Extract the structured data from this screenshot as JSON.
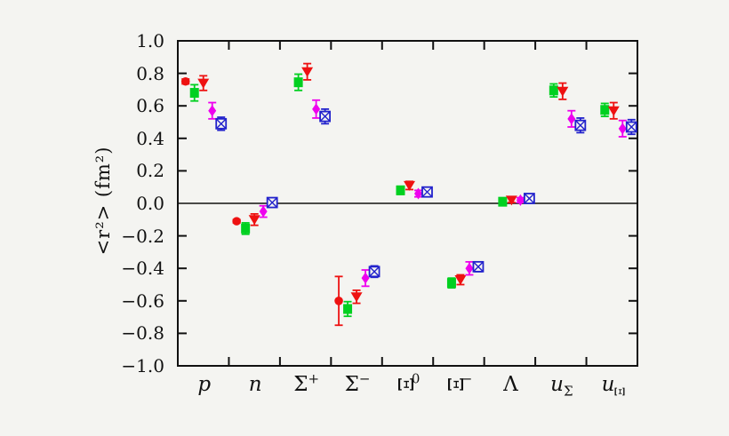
{
  "figure": {
    "kind": "scientific-plot",
    "background_color": "#f4f4f1",
    "axis_color": "#111111"
  },
  "chart_data": {
    "type": "scatter",
    "title": "",
    "xlabel": "",
    "ylabel": "<r²> (fm²)",
    "ylim": [
      -1.0,
      1.0
    ],
    "grid": false,
    "legend": "none",
    "background": "#f4f4f1",
    "yticks": [
      {
        "v": 1.0,
        "label": "1.0"
      },
      {
        "v": 0.8,
        "label": "0.8"
      },
      {
        "v": 0.6,
        "label": "0.6"
      },
      {
        "v": 0.4,
        "label": "0.4"
      },
      {
        "v": 0.2,
        "label": "0.2"
      },
      {
        "v": 0.0,
        "label": "0.0"
      },
      {
        "v": -0.2,
        "label": "−0.2"
      },
      {
        "v": -0.4,
        "label": "−0.4"
      },
      {
        "v": -0.6,
        "label": "−0.6"
      },
      {
        "v": -0.8,
        "label": "−0.8"
      },
      {
        "v": -1.0,
        "label": "−1.0"
      }
    ],
    "series": [
      {
        "name": "experiment-circle",
        "marker": "circle",
        "color": "#ee1111"
      },
      {
        "name": "green-square",
        "marker": "square",
        "color": "#00d020"
      },
      {
        "name": "red-triangle-down",
        "marker": "triangle-down",
        "color": "#ee1111"
      },
      {
        "name": "magenta-diamond",
        "marker": "diamond",
        "color": "#ee00ee"
      },
      {
        "name": "blue-crossed-square",
        "marker": "square-x",
        "color": "#2222cc"
      }
    ],
    "categories": [
      {
        "id": "p",
        "base": "p",
        "italic": true
      },
      {
        "id": "n",
        "base": "n",
        "italic": true
      },
      {
        "id": "sigma+",
        "base": "Σ",
        "sup": "+"
      },
      {
        "id": "sigma-",
        "base": "Σ",
        "sup": "−"
      },
      {
        "id": "xi0",
        "base": "Ξ",
        "sup": "0",
        "rotate_base": true
      },
      {
        "id": "xi-",
        "base": "Ξ",
        "sup": "−",
        "rotate_base": true
      },
      {
        "id": "lambda",
        "base": "Λ"
      },
      {
        "id": "u_sigma",
        "base": "u",
        "italic": true,
        "sub": "Σ"
      },
      {
        "id": "u_xi",
        "base": "u",
        "italic": true,
        "sub": "Ξ",
        "rotate_sub": true
      }
    ],
    "points": [
      [
        {
          "series": 0,
          "value": 0.75,
          "error": 0.015
        },
        {
          "series": 1,
          "value": 0.68,
          "error": 0.05
        },
        {
          "series": 2,
          "value": 0.74,
          "error": 0.045
        },
        {
          "series": 3,
          "value": 0.57,
          "error": 0.05
        },
        {
          "series": 4,
          "value": 0.49,
          "error": 0.04
        }
      ],
      [
        {
          "series": 0,
          "value": -0.11,
          "error": 0.01
        },
        {
          "series": 1,
          "value": -0.155,
          "error": 0.035
        },
        {
          "series": 2,
          "value": -0.1,
          "error": 0.035
        },
        {
          "series": 3,
          "value": -0.05,
          "error": 0.035
        },
        {
          "series": 4,
          "value": 0.005,
          "error": 0.025
        }
      ],
      [
        {
          "series": 1,
          "value": 0.745,
          "error": 0.05
        },
        {
          "series": 2,
          "value": 0.81,
          "error": 0.05
        },
        {
          "series": 3,
          "value": 0.58,
          "error": 0.055
        },
        {
          "series": 4,
          "value": 0.535,
          "error": 0.045
        }
      ],
      [
        {
          "series": 0,
          "value": -0.6,
          "error": 0.15
        },
        {
          "series": 1,
          "value": -0.65,
          "error": 0.045
        },
        {
          "series": 2,
          "value": -0.575,
          "error": 0.04
        },
        {
          "series": 3,
          "value": -0.46,
          "error": 0.05
        },
        {
          "series": 4,
          "value": -0.42,
          "error": 0.035
        }
      ],
      [
        {
          "series": 1,
          "value": 0.08,
          "error": 0.025
        },
        {
          "series": 2,
          "value": 0.11,
          "error": 0.025
        },
        {
          "series": 3,
          "value": 0.06,
          "error": 0.02
        },
        {
          "series": 4,
          "value": 0.07,
          "error": 0.015
        }
      ],
      [
        {
          "series": 1,
          "value": -0.49,
          "error": 0.03
        },
        {
          "series": 2,
          "value": -0.47,
          "error": 0.03
        },
        {
          "series": 3,
          "value": -0.4,
          "error": 0.04
        },
        {
          "series": 4,
          "value": -0.39,
          "error": 0.03
        }
      ],
      [
        {
          "series": 1,
          "value": 0.01,
          "error": 0.015
        },
        {
          "series": 2,
          "value": 0.02,
          "error": 0.015
        },
        {
          "series": 3,
          "value": 0.02,
          "error": 0.015
        },
        {
          "series": 4,
          "value": 0.03,
          "error": 0.015
        }
      ],
      [
        {
          "series": 1,
          "value": 0.695,
          "error": 0.04
        },
        {
          "series": 2,
          "value": 0.69,
          "error": 0.05
        },
        {
          "series": 3,
          "value": 0.52,
          "error": 0.05
        },
        {
          "series": 4,
          "value": 0.48,
          "error": 0.045
        }
      ],
      [
        {
          "series": 1,
          "value": 0.575,
          "error": 0.04
        },
        {
          "series": 2,
          "value": 0.57,
          "error": 0.05
        },
        {
          "series": 3,
          "value": 0.46,
          "error": 0.05
        },
        {
          "series": 4,
          "value": 0.47,
          "error": 0.045
        }
      ]
    ]
  }
}
